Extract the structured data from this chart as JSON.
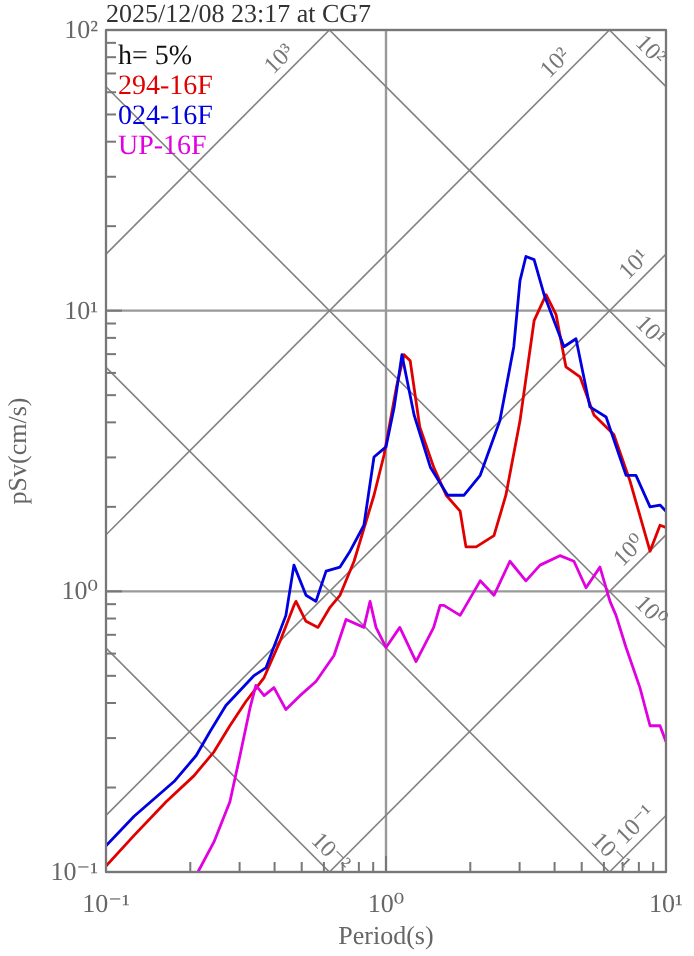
{
  "chart_data": {
    "type": "line",
    "title": "2025/12/08 23:17 at CG7",
    "xlabel": "Period(s)",
    "ylabel": "pSv(cm/s)",
    "legend_title": "h= 5%",
    "legend": "top left",
    "log": "xy",
    "grid": true,
    "xlim": [
      0.1,
      10
    ],
    "ylim": [
      0.1,
      100
    ],
    "xticks": [
      {
        "value": 0.1,
        "label": "10⁻¹"
      },
      {
        "value": 0.2,
        "label": null
      },
      {
        "value": 0.3,
        "label": null
      },
      {
        "value": 0.4,
        "label": null
      },
      {
        "value": 0.5,
        "label": null
      },
      {
        "value": 0.6,
        "label": null
      },
      {
        "value": 0.7,
        "label": null
      },
      {
        "value": 0.8,
        "label": null
      },
      {
        "value": 0.9,
        "label": null
      },
      {
        "value": 1,
        "label": "10⁰"
      },
      {
        "value": 2,
        "label": null
      },
      {
        "value": 3,
        "label": null
      },
      {
        "value": 4,
        "label": null
      },
      {
        "value": 5,
        "label": null
      },
      {
        "value": 6,
        "label": null
      },
      {
        "value": 7,
        "label": null
      },
      {
        "value": 8,
        "label": null
      },
      {
        "value": 9,
        "label": null
      },
      {
        "value": 10,
        "label": "10¹"
      }
    ],
    "yticks": [
      {
        "value": 0.1,
        "label": "10⁻¹"
      },
      {
        "value": 0.2,
        "label": null
      },
      {
        "value": 0.3,
        "label": null
      },
      {
        "value": 0.4,
        "label": null
      },
      {
        "value": 0.5,
        "label": null
      },
      {
        "value": 0.6,
        "label": null
      },
      {
        "value": 0.7,
        "label": null
      },
      {
        "value": 0.8,
        "label": null
      },
      {
        "value": 0.9,
        "label": null
      },
      {
        "value": 1,
        "label": "10⁰"
      },
      {
        "value": 2,
        "label": null
      },
      {
        "value": 3,
        "label": null
      },
      {
        "value": 4,
        "label": null
      },
      {
        "value": 5,
        "label": null
      },
      {
        "value": 6,
        "label": null
      },
      {
        "value": 7,
        "label": null
      },
      {
        "value": 8,
        "label": null
      },
      {
        "value": 9,
        "label": null
      },
      {
        "value": 10,
        "label": "10¹"
      },
      {
        "value": 20,
        "label": null
      },
      {
        "value": 30,
        "label": null
      },
      {
        "value": 40,
        "label": null
      },
      {
        "value": 50,
        "label": null
      },
      {
        "value": 60,
        "label": null
      },
      {
        "value": 70,
        "label": null
      },
      {
        "value": 80,
        "label": null
      },
      {
        "value": 90,
        "label": null
      },
      {
        "value": 100,
        "label": "10²"
      }
    ],
    "series": [
      {
        "color": "#808080",
        "x": [
          0.1,
          0.628
        ],
        "values": [
          15.9,
          100
        ]
      },
      {
        "color": "#808080",
        "x": [
          0.1,
          6.28
        ],
        "values": [
          1.59,
          100
        ]
      },
      {
        "color": "#808080",
        "x": [
          0.1,
          10
        ],
        "values": [
          0.159,
          15.9
        ]
      },
      {
        "color": "#808080",
        "x": [
          0.628,
          10
        ],
        "values": [
          0.1,
          1.59
        ]
      },
      {
        "color": "#808080",
        "x": [
          6.28,
          10
        ],
        "values": [
          0.1,
          0.159
        ]
      },
      {
        "color": "#808080",
        "x": [
          6.28,
          10
        ],
        "values": [
          100,
          62.8
        ]
      },
      {
        "color": "#808080",
        "x": [
          0.628,
          10
        ],
        "values": [
          100,
          6.28
        ]
      },
      {
        "color": "#808080",
        "x": [
          0.1,
          10
        ],
        "values": [
          62.8,
          0.628
        ]
      },
      {
        "color": "#808080",
        "x": [
          0.1,
          6.28
        ],
        "values": [
          6.28,
          0.1
        ]
      },
      {
        "color": "#808080",
        "x": [
          0.1,
          0.628
        ],
        "values": [
          0.628,
          0.1
        ]
      },
      {
        "name": "294-16F",
        "color": "#e00000",
        "x": [
          0.1,
          0.126,
          0.164,
          0.206,
          0.243,
          0.277,
          0.316,
          0.367,
          0.418,
          0.469,
          0.477,
          0.518,
          0.572,
          0.631,
          0.685,
          0.769,
          0.906,
          0.984,
          1.09,
          1.16,
          1.22,
          1.32,
          1.48,
          1.64,
          1.84,
          1.93,
          2.1,
          2.43,
          2.68,
          3.01,
          3.38,
          3.73,
          4.05,
          4.39,
          4.93,
          5.53,
          6.52,
          7.44,
          8.77,
          9.52,
          10
        ],
        "values": [
          0.105,
          0.135,
          0.178,
          0.22,
          0.268,
          0.332,
          0.405,
          0.493,
          0.663,
          0.891,
          0.921,
          0.782,
          0.744,
          0.877,
          0.968,
          1.28,
          2.2,
          3.06,
          5.35,
          6.97,
          6.63,
          3.85,
          2.77,
          2.2,
          1.93,
          1.44,
          1.44,
          1.58,
          2.2,
          4.05,
          9.21,
          11.4,
          9.68,
          6.31,
          5.81,
          4.25,
          3.61,
          2.47,
          1.39,
          1.72,
          1.69
        ]
      },
      {
        "name": "024-16F",
        "color": "#0000e0",
        "x": [
          0.1,
          0.126,
          0.175,
          0.21,
          0.235,
          0.268,
          0.338,
          0.373,
          0.439,
          0.469,
          0.518,
          0.562,
          0.611,
          0.685,
          0.744,
          0.834,
          0.906,
          1,
          1.07,
          1.14,
          1.26,
          1.44,
          1.66,
          1.9,
          2.17,
          2.55,
          2.86,
          3.01,
          3.16,
          3.38,
          3.67,
          4.32,
          4.77,
          5.35,
          6.11,
          7.2,
          7.81,
          8.77,
          9.52,
          10
        ],
        "values": [
          0.124,
          0.158,
          0.21,
          0.26,
          0.316,
          0.392,
          0.501,
          0.535,
          0.821,
          1.24,
          0.968,
          0.921,
          1.18,
          1.22,
          1.39,
          1.72,
          3.01,
          3.27,
          4.54,
          6.97,
          4.25,
          2.77,
          2.2,
          2.2,
          2.59,
          4.05,
          7.44,
          12.8,
          15.6,
          15.2,
          11.4,
          7.44,
          7.94,
          4.54,
          4.18,
          2.59,
          2.59,
          2.0,
          2.03,
          1.93
        ]
      },
      {
        "name": "UP-16F",
        "color": "#e000e0",
        "x": [
          0.213,
          0.243,
          0.277,
          0.301,
          0.327,
          0.343,
          0.367,
          0.398,
          0.439,
          0.493,
          0.562,
          0.652,
          0.72,
          0.834,
          0.877,
          0.921,
          1,
          1.12,
          1.28,
          1.48,
          1.56,
          1.61,
          1.84,
          2.17,
          2.43,
          2.77,
          3.16,
          3.55,
          4.18,
          4.69,
          5.18,
          5.81,
          6.31,
          6.63,
          7.2,
          8.07,
          8.77,
          9.52,
          10
        ],
        "values": [
          0.1,
          0.128,
          0.178,
          0.26,
          0.385,
          0.462,
          0.425,
          0.454,
          0.379,
          0.425,
          0.477,
          0.591,
          0.794,
          0.744,
          0.921,
          0.744,
          0.631,
          0.744,
          0.562,
          0.744,
          0.891,
          0.891,
          0.821,
          1.09,
          0.968,
          1.28,
          1.09,
          1.24,
          1.34,
          1.28,
          1.03,
          1.22,
          0.921,
          0.821,
          0.631,
          0.454,
          0.332,
          0.332,
          0.291
        ]
      }
    ],
    "annotations": [
      {
        "text": "10³",
        "x": 0.454,
        "y": 72.3
      },
      {
        "text": "10²",
        "x": 4.39,
        "y": 69.9
      },
      {
        "text": "10²",
        "x": 8.07,
        "y": 77.8
      },
      {
        "text": "10¹",
        "x": 8.4,
        "y": 13.4
      },
      {
        "text": "10¹",
        "x": 8.07,
        "y": 7.78
      },
      {
        "text": "10⁰",
        "x": 8.07,
        "y": 1.28
      },
      {
        "text": "10⁰",
        "x": 8.07,
        "y": 0.778
      },
      {
        "text": "10⁻¹",
        "x": 8.49,
        "y": 0.135
      },
      {
        "text": "10⁻¹",
        "x": 5.81,
        "y": 0.108
      },
      {
        "text": "10⁻²",
        "x": 0.581,
        "y": 0.108
      }
    ]
  }
}
